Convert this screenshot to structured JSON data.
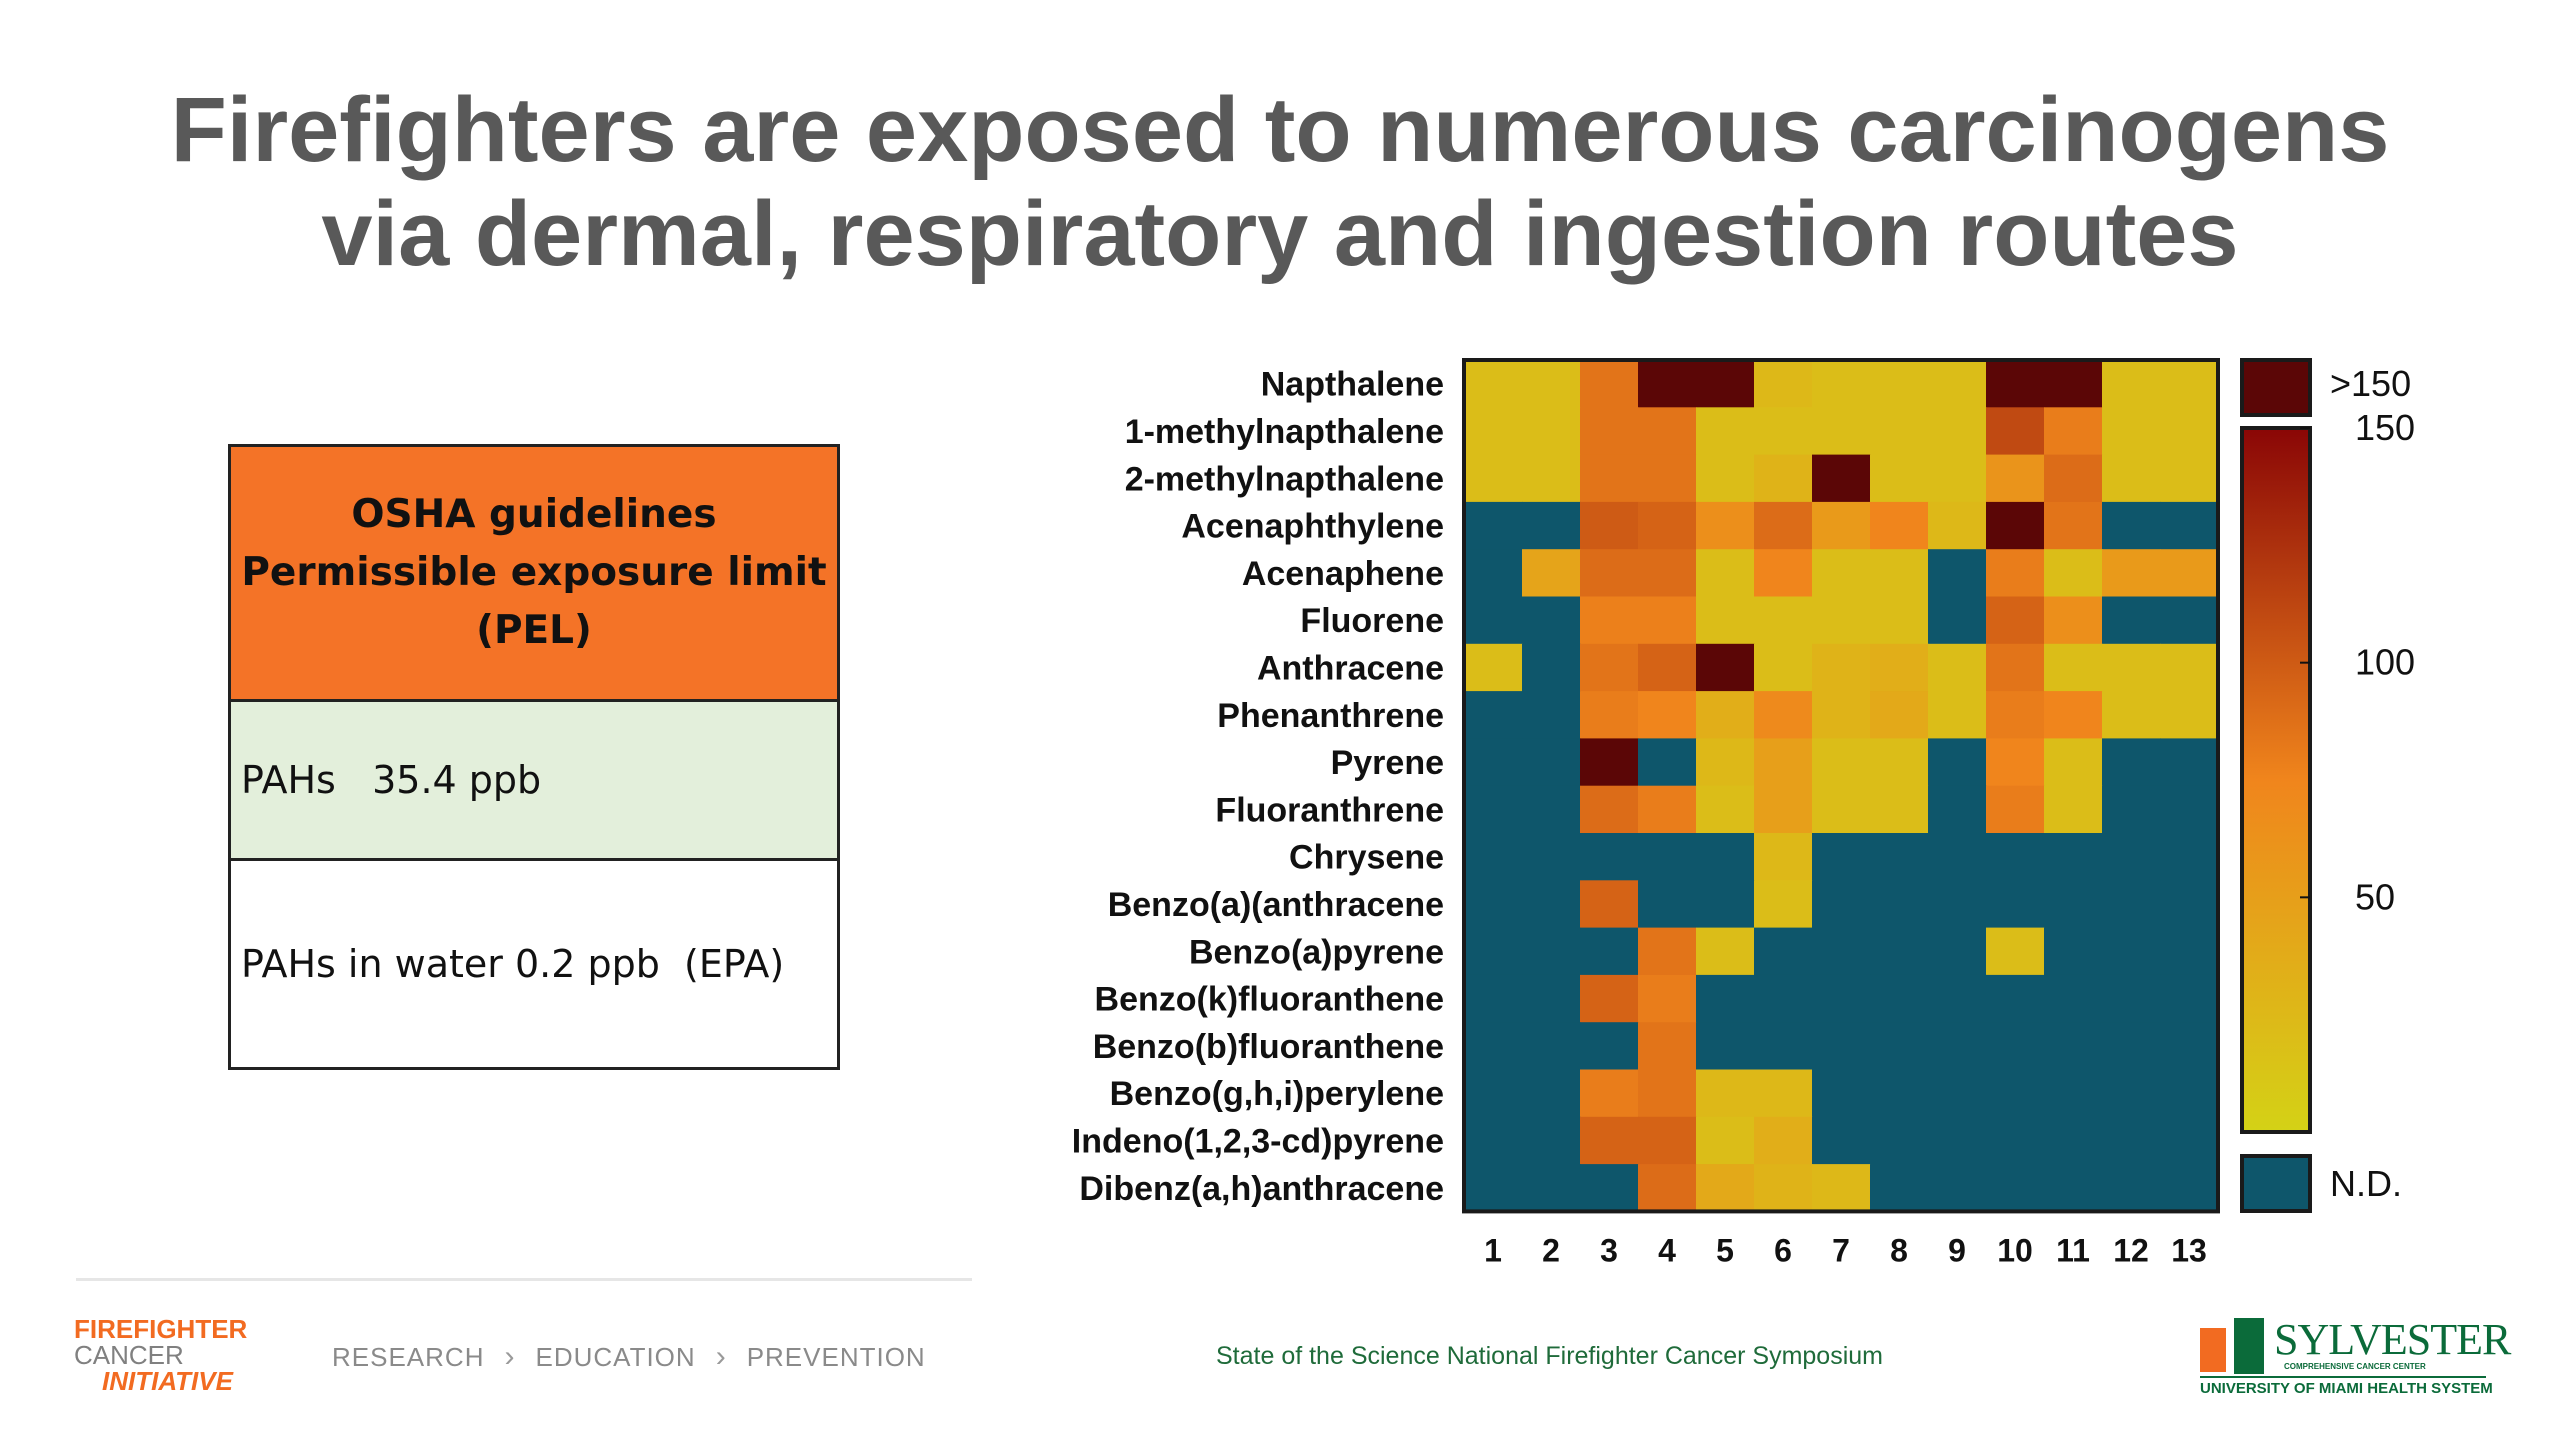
{
  "slide": {
    "title_line1": "Firefighters are exposed to numerous carcinogens",
    "title_line2": "via dermal, respiratory and ingestion routes"
  },
  "pel_table": {
    "header_line1": "OSHA guidelines",
    "header_line2": "Permissible exposure limit",
    "header_line3": "(PEL)",
    "row1": "PAHs   35.4 ppb",
    "row2": "PAHs in water 0.2 ppb  (EPA)"
  },
  "footer": {
    "logo_line1": "FIREFIGHTER",
    "logo_line2": "CANCER",
    "logo_line3": "INITIATIVE",
    "crumbs": [
      "RESEARCH",
      "EDUCATION",
      "PREVENTION"
    ],
    "symposium": "State of the Science National Firefighter Cancer Symposium",
    "sylvester_name": "SYLVESTER",
    "sylvester_sub": "COMPREHENSIVE CANCER CENTER",
    "sylvester_system": "UNIVERSITY OF MIAMI HEALTH SYSTEM"
  },
  "chart_data": {
    "type": "heatmap",
    "x": [
      "1",
      "2",
      "3",
      "4",
      "5",
      "6",
      "7",
      "8",
      "9",
      "10",
      "11",
      "12",
      "13"
    ],
    "y": [
      "Napthalene",
      "1-methylnapthalene",
      "2-methylnapthalene",
      "Acenaphthylene",
      "Acenaphene",
      "Fluorene",
      "Anthracene",
      "Phenanthrene",
      "Pyrene",
      "Fluoranthrene",
      "Chrysene",
      "Benzo(a)(anthracene",
      "Benzo(a)pyrene",
      "Benzo(k)fluoranthene",
      "Benzo(b)fluoranthene",
      "Benzo(g,h,i)perylene",
      "Indeno(1,2,3-cd)pyrene",
      "Dibenz(a,h)anthracene"
    ],
    "note_values": "null = N.D. (not detected); 999 = >150",
    "values": [
      [
        20,
        20,
        85,
        999,
        999,
        25,
        20,
        20,
        20,
        999,
        999,
        20,
        20
      ],
      [
        20,
        20,
        85,
        85,
        20,
        20,
        20,
        20,
        20,
        110,
        80,
        20,
        20
      ],
      [
        20,
        20,
        85,
        85,
        20,
        30,
        999,
        20,
        20,
        60,
        90,
        20,
        20
      ],
      [
        null,
        null,
        100,
        95,
        65,
        90,
        55,
        75,
        25,
        999,
        85,
        null,
        null
      ],
      [
        null,
        45,
        90,
        90,
        20,
        75,
        20,
        20,
        null,
        80,
        20,
        55,
        55
      ],
      [
        null,
        null,
        78,
        78,
        20,
        20,
        20,
        20,
        null,
        95,
        65,
        null,
        null
      ],
      [
        20,
        null,
        85,
        95,
        999,
        20,
        30,
        35,
        20,
        85,
        20,
        20,
        20
      ],
      [
        null,
        null,
        80,
        75,
        35,
        70,
        30,
        40,
        20,
        80,
        75,
        20,
        20
      ],
      [
        null,
        null,
        999,
        null,
        25,
        50,
        20,
        20,
        null,
        75,
        20,
        null,
        null
      ],
      [
        null,
        null,
        90,
        80,
        20,
        50,
        20,
        20,
        null,
        80,
        20,
        null,
        null
      ],
      [
        null,
        null,
        null,
        null,
        null,
        25,
        null,
        null,
        null,
        null,
        null,
        null,
        null
      ],
      [
        null,
        null,
        95,
        null,
        null,
        20,
        null,
        null,
        null,
        null,
        null,
        null,
        null
      ],
      [
        null,
        null,
        null,
        85,
        20,
        null,
        null,
        null,
        null,
        20,
        null,
        null,
        null
      ],
      [
        null,
        null,
        95,
        80,
        null,
        null,
        null,
        null,
        null,
        null,
        null,
        null,
        null
      ],
      [
        null,
        null,
        null,
        85,
        null,
        null,
        null,
        null,
        null,
        null,
        null,
        null,
        null
      ],
      [
        null,
        null,
        80,
        85,
        25,
        25,
        null,
        null,
        null,
        null,
        null,
        null,
        null
      ],
      [
        null,
        null,
        95,
        95,
        20,
        35,
        null,
        null,
        null,
        null,
        null,
        null,
        null
      ],
      [
        null,
        null,
        null,
        90,
        40,
        30,
        25,
        null,
        null,
        null,
        null,
        null,
        null
      ]
    ],
    "scale": {
      "ticks": [
        {
          "label": "150",
          "value": 150
        },
        {
          "label": "100",
          "value": 100
        },
        {
          "label": "50",
          "value": 50
        }
      ],
      "min": 0,
      "max": 150,
      "over_label": ">150",
      "nd_label": "N.D."
    },
    "colors": {
      "nd": "#0e566b",
      "over": "#5b0606",
      "low": "#d4d216",
      "mid": "#f0851c",
      "high": "#8a0606",
      "frame": "#1a1a1a"
    }
  }
}
